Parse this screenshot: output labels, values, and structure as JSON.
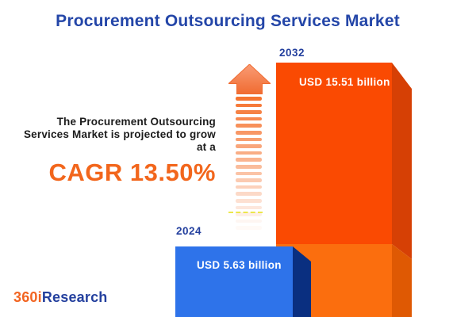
{
  "title": "Procurement Outsourcing Services Market",
  "description": {
    "line1": "The Procurement Outsourcing",
    "line2": "Services Market is projected to grow",
    "line3": "at a",
    "cagr_label": "CAGR 13.50%"
  },
  "chart_data": {
    "type": "bar",
    "title": "Procurement Outsourcing Services Market",
    "categories": [
      "2024",
      "2032"
    ],
    "values": [
      5.63,
      15.51
    ],
    "unit": "USD billion",
    "value_labels": [
      "USD 5.63 billion",
      "USD 15.51 billion"
    ],
    "cagr_percent": 13.5,
    "annotation": "The Procurement Outsourcing Services Market is projected to grow at a CAGR 13.50%",
    "legend": "none",
    "axes": "none"
  },
  "logo": {
    "prefix": "360i",
    "suffix": "Research"
  },
  "colors": {
    "title_blue": "#2446A8",
    "cagr_orange": "#F2661C",
    "bar_2024_front": "#2E73EA",
    "bar_2024_side": "#0A2F80",
    "bar_2032_front_top": "#FA4A02",
    "bar_2032_front_bottom": "#FB6E0E",
    "bar_2032_side_top": "#D64005",
    "bar_2032_side_bottom": "#DF5903",
    "arrow_orange": "#F5732F"
  }
}
